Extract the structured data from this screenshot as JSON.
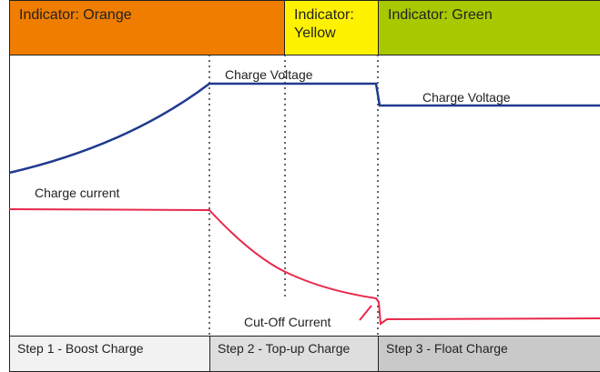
{
  "header": {
    "stages": [
      "Indicator: Orange",
      "Indicator: Yellow",
      "Indicator: Green"
    ]
  },
  "labels": {
    "voltage_1": "Charge Voltage",
    "voltage_2": "Charge Voltage",
    "current": "Charge current",
    "cutoff": "Cut-Off Current"
  },
  "footer": {
    "steps": [
      "Step 1 - Boost Charge",
      "Step 2 - Top-up Charge",
      "Step 3 - Float Charge"
    ]
  }
}
